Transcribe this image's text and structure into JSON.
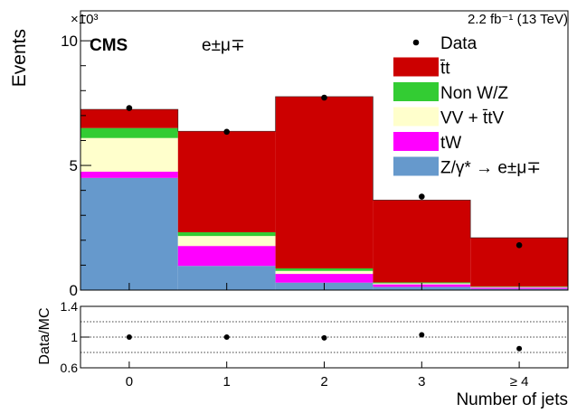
{
  "chart_data": {
    "type": "bar",
    "stacked": true,
    "experiment": "CMS",
    "channel": "e±μ∓",
    "lumi": "2.2 fb⁻¹ (13 TeV)",
    "xlabel": "Number of jets",
    "ylabel": "Events",
    "y_multiplier": "×10³",
    "categories": [
      "0",
      "1",
      "2",
      "3",
      "≥ 4"
    ],
    "ylim": [
      0,
      11.2
    ],
    "yticks": [
      0,
      5,
      10
    ],
    "series": [
      {
        "name": "Z/γ* → e±μ∓",
        "color": "#6699cc",
        "values": [
          4.5,
          0.97,
          0.3,
          0.13,
          0.05
        ]
      },
      {
        "name": "tW",
        "color": "#ff00ff",
        "values": [
          0.25,
          0.8,
          0.35,
          0.1,
          0.05
        ]
      },
      {
        "name": "VV + t̄tV",
        "color": "#ffffcc",
        "values": [
          1.35,
          0.4,
          0.12,
          0.04,
          0.02
        ]
      },
      {
        "name": "Non W/Z",
        "color": "#33cc33",
        "values": [
          0.4,
          0.15,
          0.1,
          0.04,
          0.02
        ]
      },
      {
        "name": "t̄t",
        "color": "#cc0000",
        "values": [
          0.75,
          4.05,
          6.89,
          3.3,
          1.96
        ]
      }
    ],
    "data": {
      "name": "Data",
      "values": [
        7.3,
        6.35,
        7.72,
        3.75,
        1.8
      ]
    },
    "ratio": {
      "ylabel": "Data/MC",
      "ylim": [
        0.6,
        1.4
      ],
      "yticks": [
        0.6,
        1,
        1.4
      ],
      "values": [
        1.0,
        1.0,
        0.99,
        1.03,
        0.85
      ]
    },
    "legend_position": "top-right",
    "legend_order": [
      "Data",
      "t̄t",
      "Non W/Z",
      "VV + t̄tV",
      "tW",
      "Z/γ* → e±μ∓"
    ],
    "grid": "ratio panel dotted lines at 0.8, 1, 1.2"
  }
}
